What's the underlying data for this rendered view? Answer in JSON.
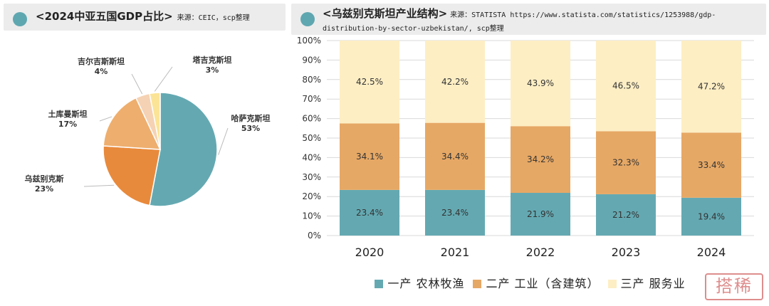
{
  "left": {
    "title": "<2024中亚五国GDP占比>",
    "source": "来源：CEIC，scp整理",
    "dot_color": "#5fa7b0"
  },
  "right": {
    "title": "<乌兹别克斯坦产业结构>",
    "source": "来源：STATISTA https://www.statista.com/statistics/1253988/gdp-distribution-by-sector-uzbekistan/, scp整理",
    "dot_color": "#5fa7b0"
  },
  "watermark": "搭稀",
  "chart_data": [
    {
      "type": "pie",
      "title": "<2024中亚五国GDP占比>",
      "slices": [
        {
          "name": "哈萨克斯坦",
          "value": 53,
          "label": "53%",
          "color": "#64a9b2"
        },
        {
          "name": "乌兹别克斯",
          "value": 23,
          "label": "23%",
          "color": "#e88a3c"
        },
        {
          "name": "土库曼斯坦",
          "value": 17,
          "label": "17%",
          "color": "#eeae6e"
        },
        {
          "name": "吉尔吉斯斯坦",
          "value": 4,
          "label": "4%",
          "color": "#f5d2b4"
        },
        {
          "name": "塔吉克斯坦",
          "value": 3,
          "label": "3%",
          "color": "#fbe496"
        }
      ],
      "start_angle_deg": 0,
      "direction": "clockwise"
    },
    {
      "type": "bar",
      "stacked": true,
      "title": "<乌兹别克斯坦产业结构>",
      "categories": [
        "2020",
        "2021",
        "2022",
        "2023",
        "2024"
      ],
      "series": [
        {
          "name": "一产 农林牧渔",
          "values": [
            23.4,
            23.4,
            21.9,
            21.2,
            19.4
          ],
          "labels": [
            "23.4%",
            "23.4%",
            "21.9%",
            "21.2%",
            "19.4%"
          ],
          "color": "#64a9b2"
        },
        {
          "name": "二产 工业（含建筑）",
          "values": [
            34.1,
            34.4,
            34.2,
            32.3,
            33.4
          ],
          "labels": [
            "34.1%",
            "34.4%",
            "34.2%",
            "32.3%",
            "33.4%"
          ],
          "color": "#e6a865"
        },
        {
          "name": "三产 服务业",
          "values": [
            42.5,
            42.2,
            43.9,
            46.5,
            47.2
          ],
          "labels": [
            "42.5%",
            "42.2%",
            "43.9%",
            "46.5%",
            "47.2%"
          ],
          "color": "#fdeec4"
        }
      ],
      "yticks": [
        "0%",
        "10%",
        "20%",
        "30%",
        "40%",
        "50%",
        "60%",
        "70%",
        "80%",
        "90%",
        "100%"
      ],
      "ylim": [
        0,
        100
      ],
      "grid": true,
      "legend": "bottom"
    }
  ]
}
